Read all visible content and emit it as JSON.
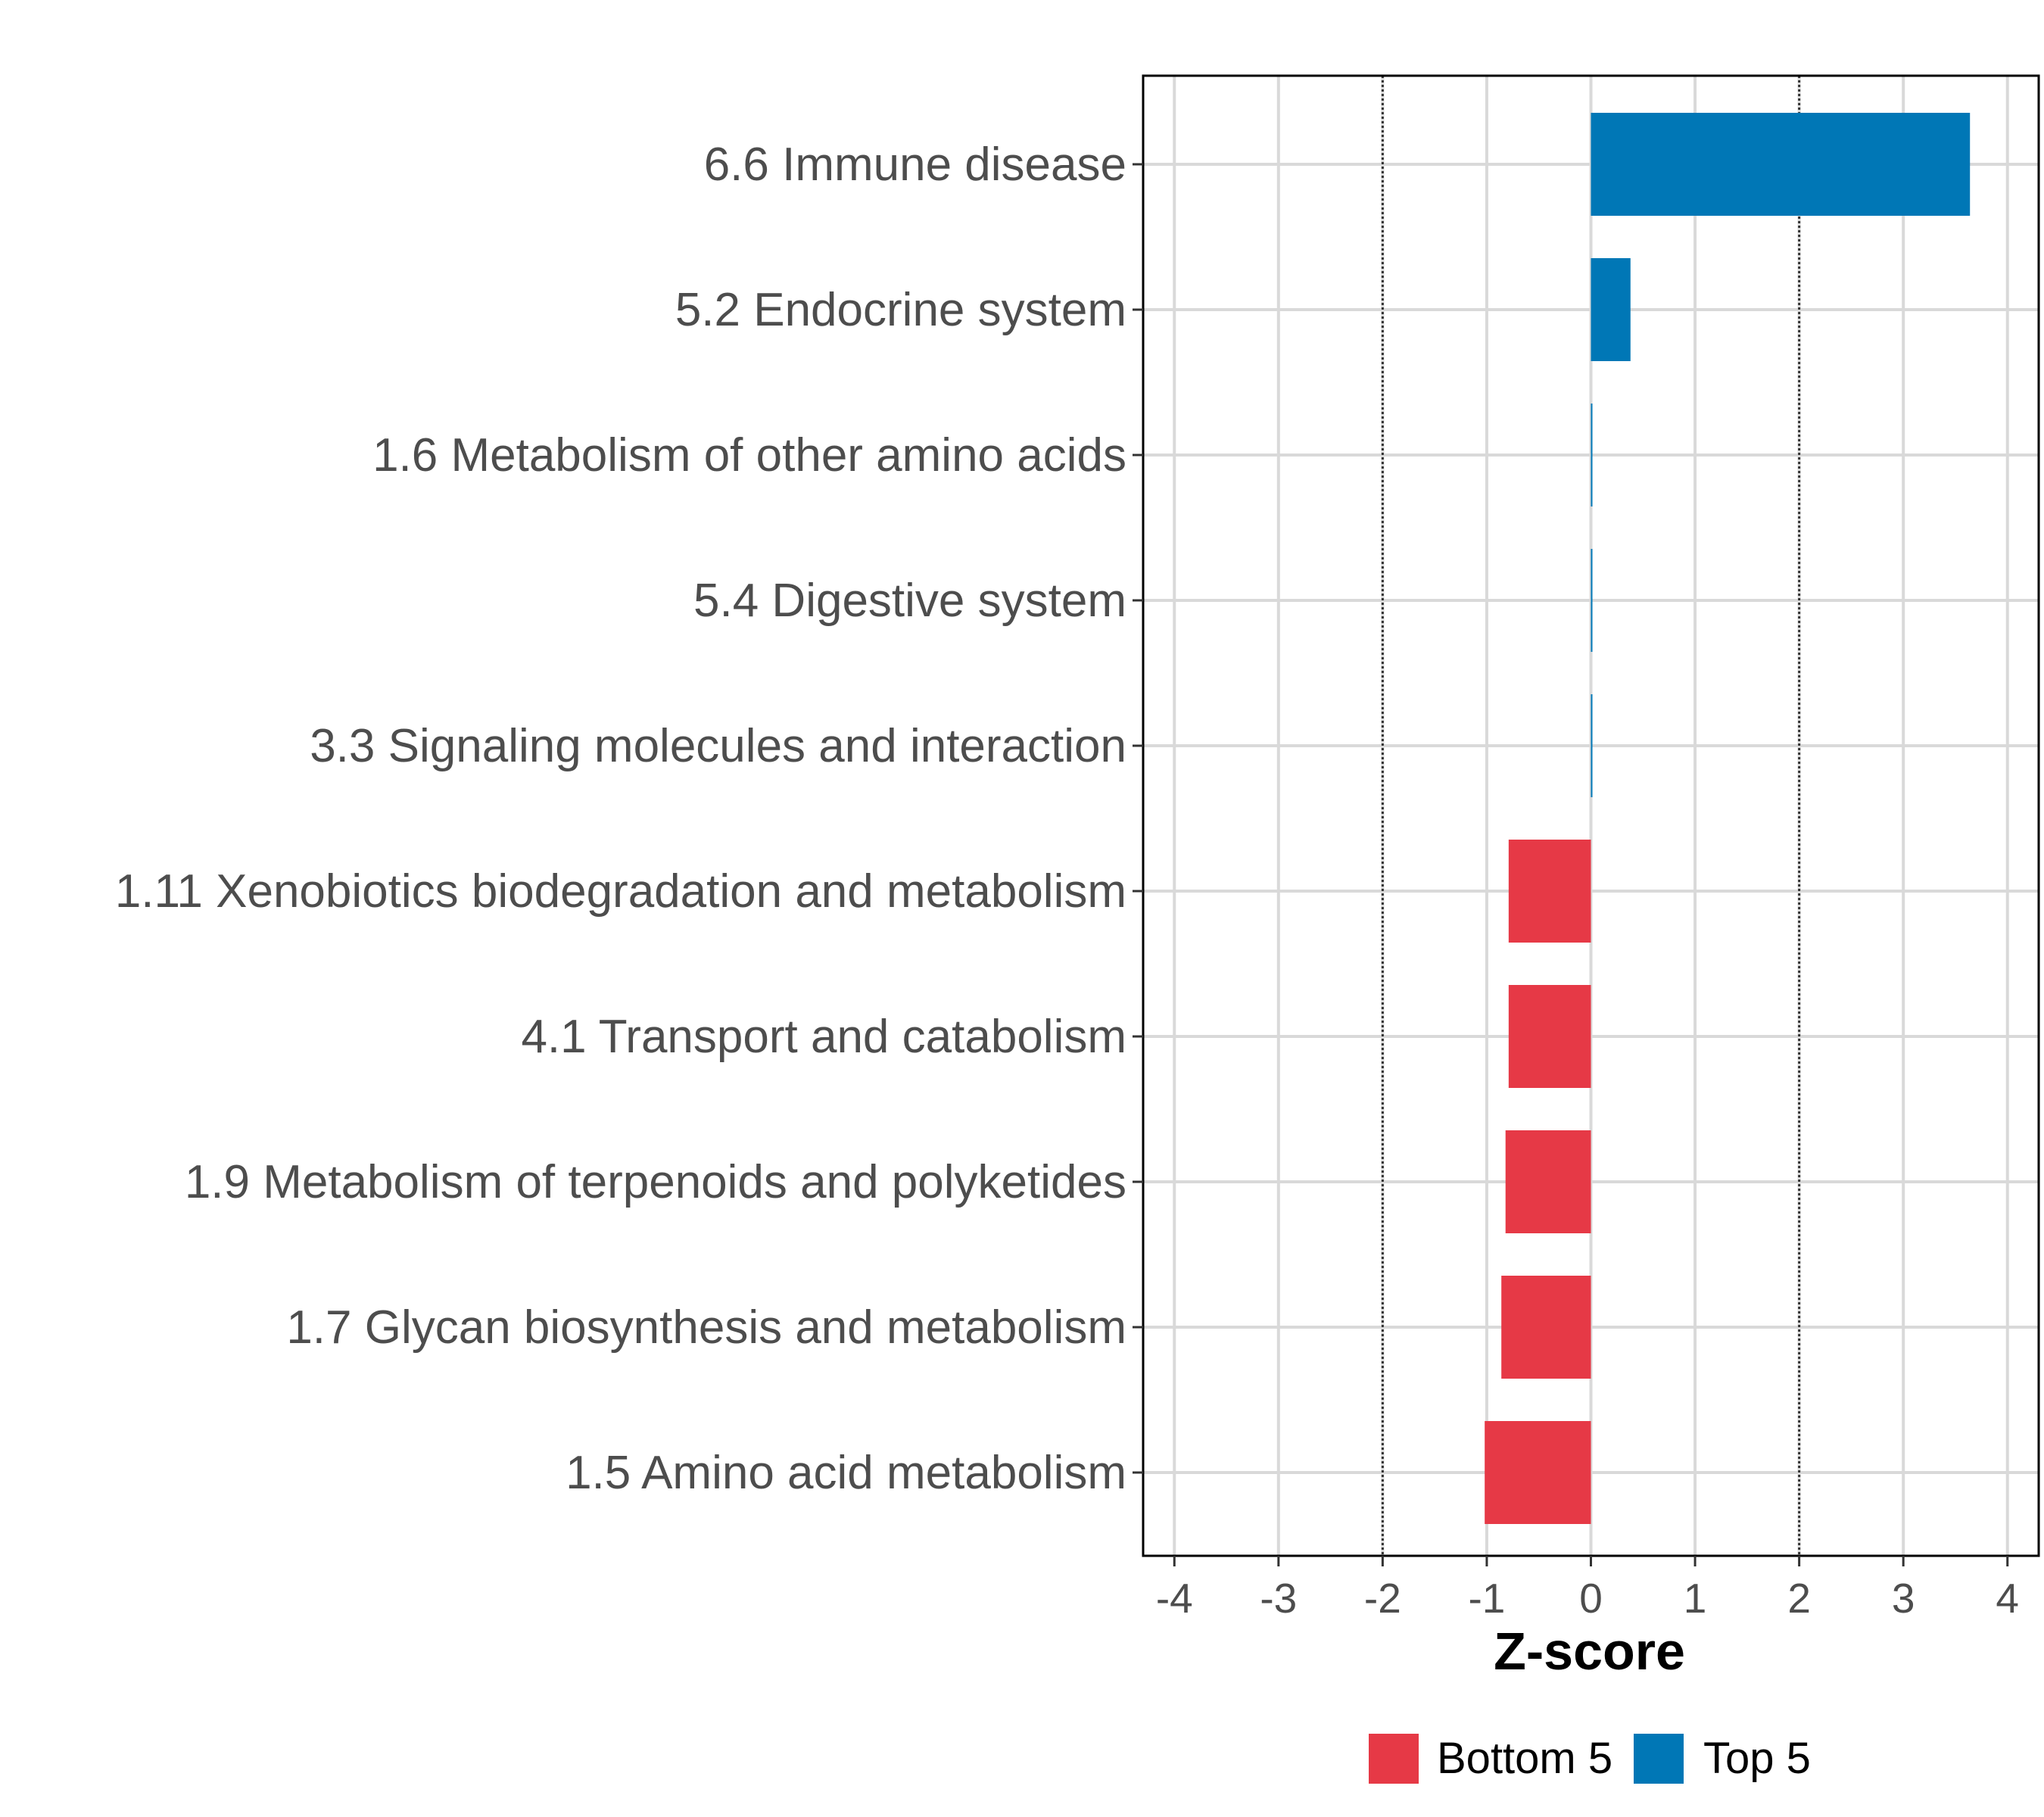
{
  "chart_data": {
    "type": "bar",
    "orientation": "horizontal",
    "categories": [
      "6.6 Immune disease",
      "5.2 Endocrine system",
      "1.6 Metabolism of other amino acids",
      "5.4 Digestive system",
      "3.3 Signaling molecules and interaction",
      "1.11 Xenobiotics biodegradation and metabolism",
      "4.1 Transport and catabolism",
      "1.9 Metabolism of terpenoids and polyketides",
      "1.7 Glycan biosynthesis and metabolism",
      "1.5 Amino acid metabolism"
    ],
    "values": [
      3.64,
      0.38,
      0.01,
      0.01,
      0.01,
      -0.79,
      -0.79,
      -0.82,
      -0.86,
      -1.02
    ],
    "groups": [
      "Top 5",
      "Top 5",
      "Top 5",
      "Top 5",
      "Top 5",
      "Bottom 5",
      "Bottom 5",
      "Bottom 5",
      "Bottom 5",
      "Bottom 5"
    ],
    "xlabel": "Z-score",
    "ylabel": "",
    "xlim": [
      -4.3,
      4.3
    ],
    "xticks": [
      -4,
      -3,
      -2,
      -1,
      0,
      1,
      2,
      3,
      4
    ],
    "xtick_labels": [
      "-4",
      "-3",
      "-2",
      "-1",
      "0",
      "1",
      "2",
      "3",
      "4"
    ],
    "reference_lines": [
      -2,
      2
    ],
    "grid": true,
    "legend": {
      "position": "bottom",
      "entries": [
        {
          "label": "Bottom 5",
          "color": "#E63946"
        },
        {
          "label": "Top 5",
          "color": "#0077B6"
        }
      ]
    },
    "colors": {
      "Bottom 5": "#E63946",
      "Top 5": "#0077B6"
    }
  }
}
